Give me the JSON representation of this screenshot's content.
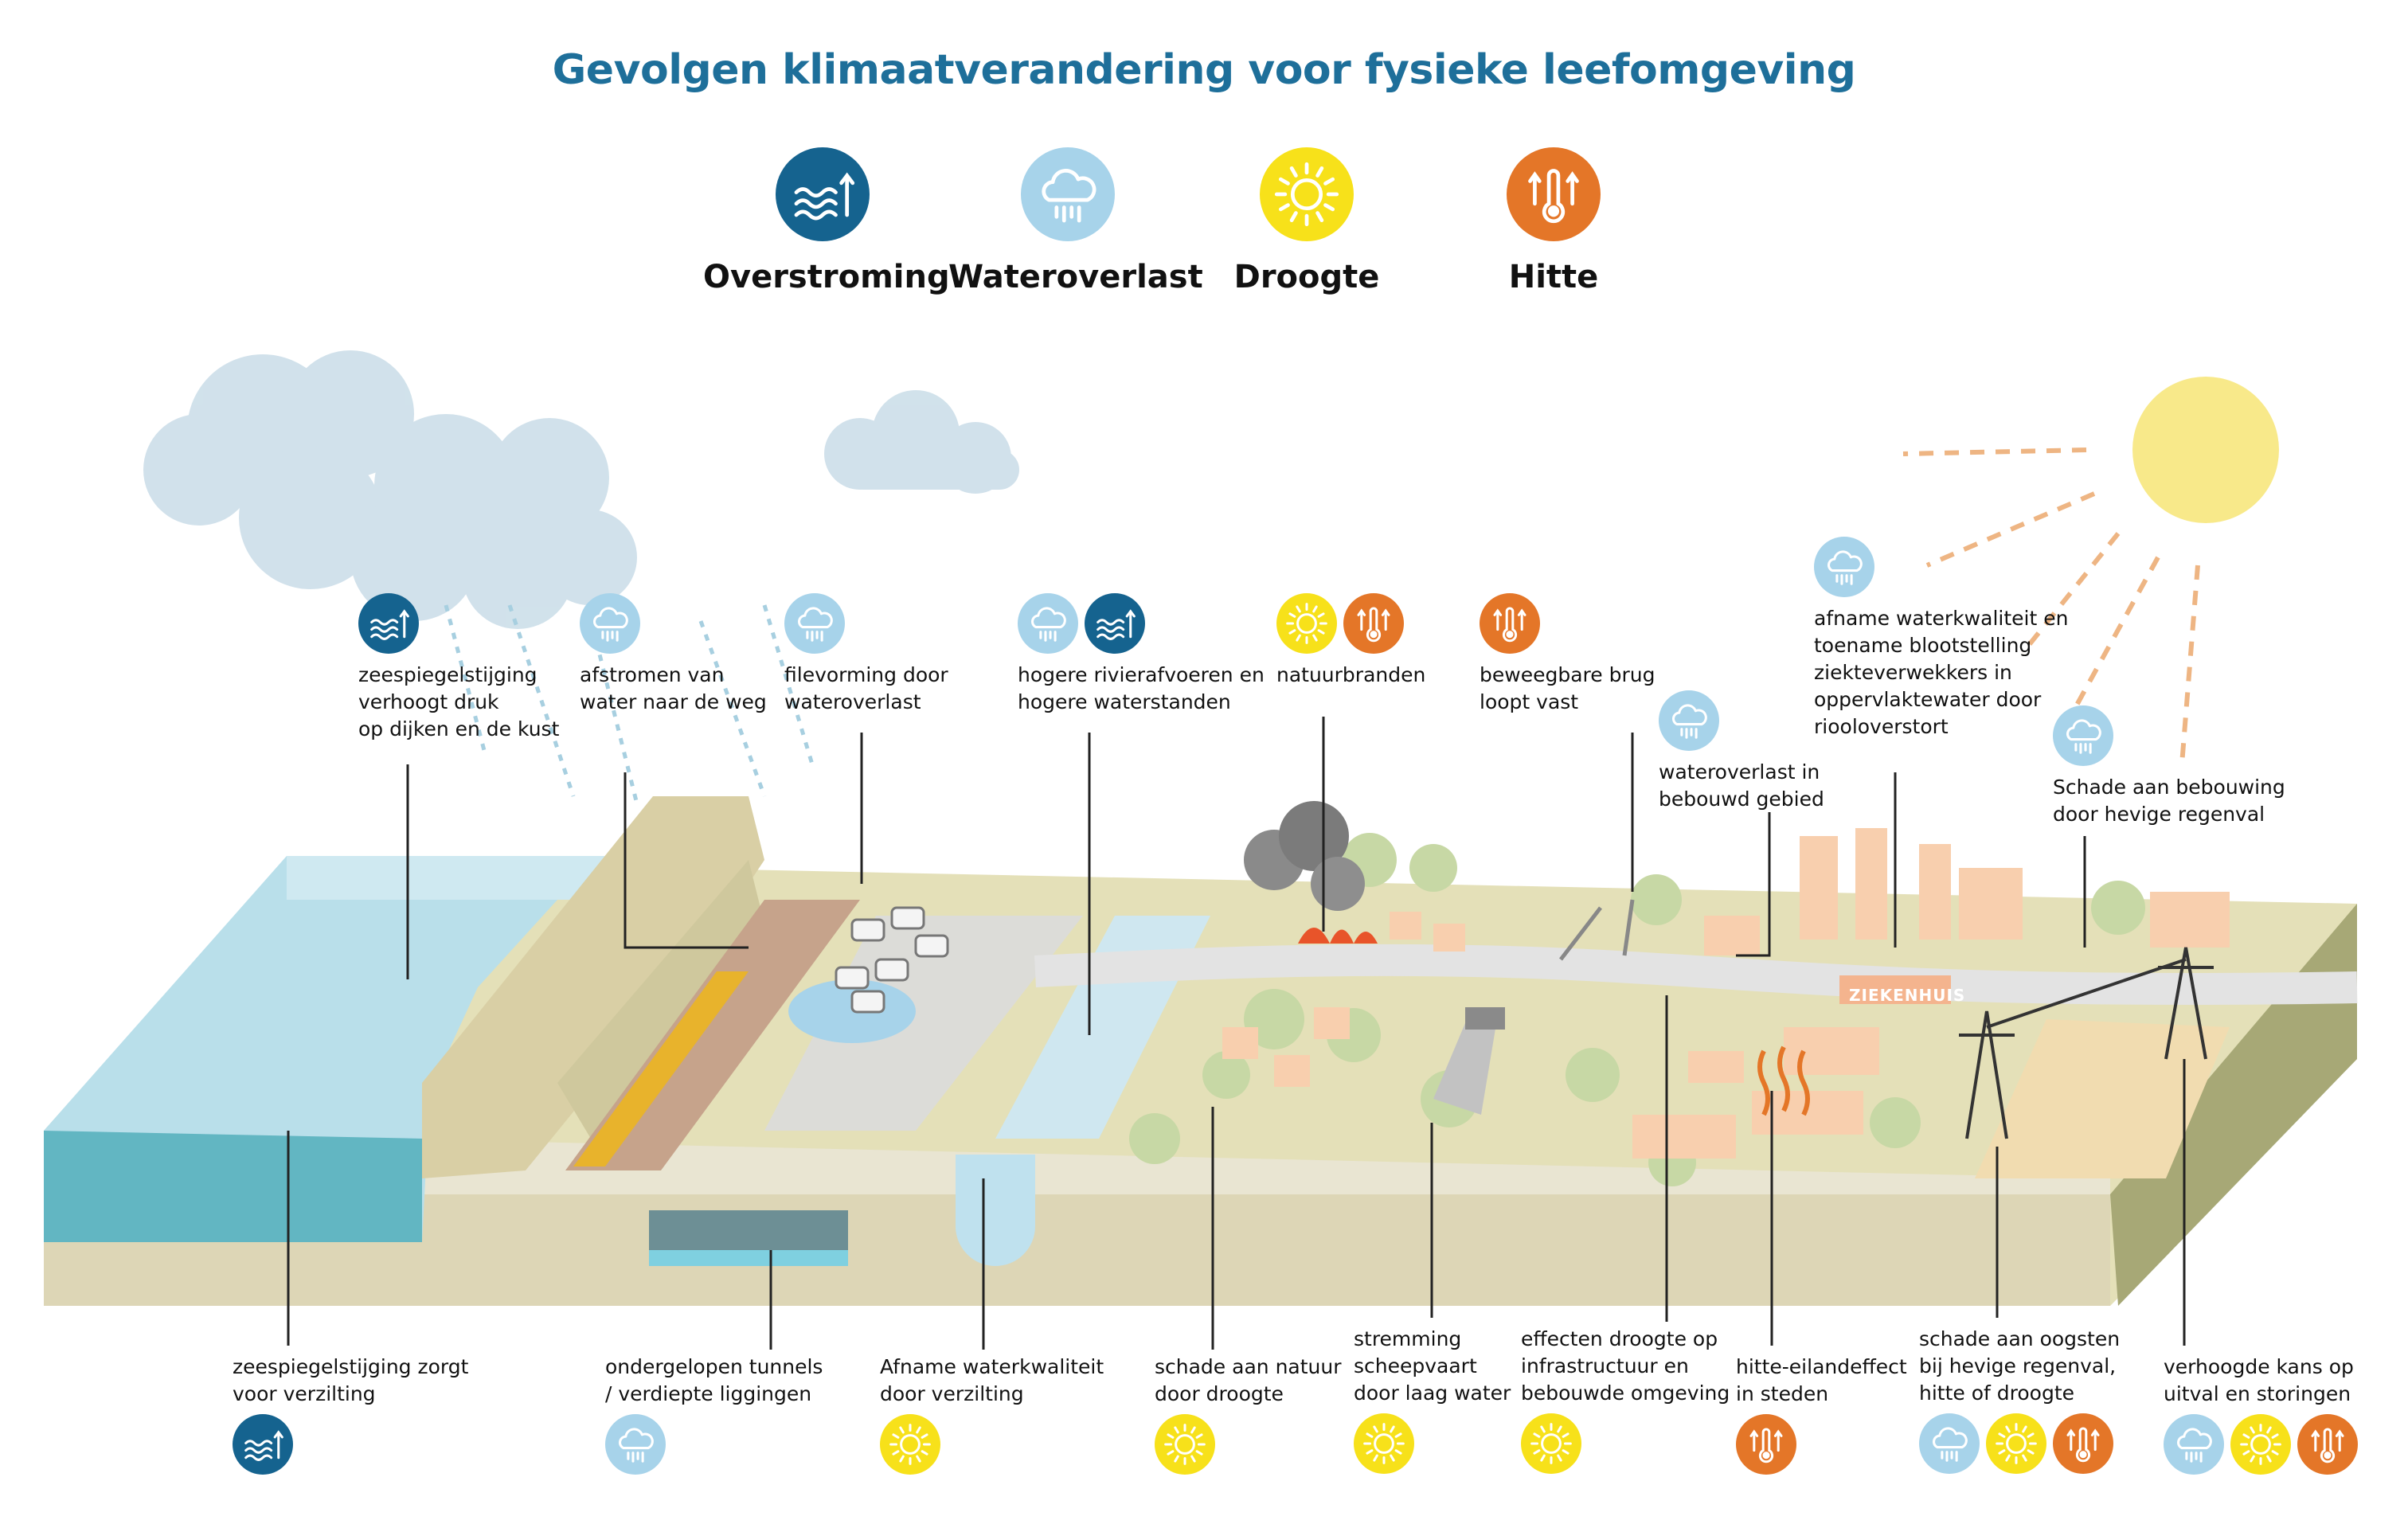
{
  "title": "Gevolgen klimaatverandering voor fysieke leefomgeving",
  "colors": {
    "overstroming": "#15638f",
    "wateroverlast": "#a7d3ea",
    "droogte": "#f7e11a",
    "hitte": "#e47628",
    "title": "#1e6f9a"
  },
  "legend": [
    {
      "type": "overstroming",
      "label": "Overstroming",
      "icon": "waves-arrow-icon"
    },
    {
      "type": "wateroverlast",
      "label": "Wateroverlast",
      "icon": "rain-cloud-icon"
    },
    {
      "type": "droogte",
      "label": "Droogte",
      "icon": "sun-icon"
    },
    {
      "type": "hitte",
      "label": "Hitte",
      "icon": "thermometer-icon"
    }
  ],
  "annotations": {
    "top": [
      {
        "id": "zeespiegelstijging-druk",
        "icons": [
          "overstroming"
        ],
        "lines": [
          "zeespiegelstijging",
          "verhoogt druk",
          "op dijken en de kust"
        ]
      },
      {
        "id": "afstromen-water",
        "icons": [
          "wateroverlast"
        ],
        "lines": [
          "afstromen van",
          "water naar de weg"
        ]
      },
      {
        "id": "filevorming",
        "icons": [
          "wateroverlast"
        ],
        "lines": [
          "filevorming door",
          "wateroverlast"
        ]
      },
      {
        "id": "rivierafvoeren",
        "icons": [
          "wateroverlast",
          "overstroming"
        ],
        "lines": [
          "hogere rivierafvoeren en",
          "hogere waterstanden"
        ]
      },
      {
        "id": "natuurbranden",
        "icons": [
          "droogte",
          "hitte"
        ],
        "lines": [
          "natuurbranden"
        ]
      },
      {
        "id": "beweegbare-brug",
        "icons": [
          "hitte"
        ],
        "lines": [
          "beweegbare brug",
          "loopt vast"
        ]
      },
      {
        "id": "wateroverlast-bebouwd",
        "icons": [
          "wateroverlast"
        ],
        "lines": [
          "wateroverlast in",
          "bebouwd gebied"
        ]
      },
      {
        "id": "waterkwaliteit-ziekteverwekkers",
        "icons": [
          "wateroverlast"
        ],
        "lines": [
          "afname waterkwaliteit en",
          "toename blootstelling",
          "ziekteverwekkers in",
          "oppervlaktewater door",
          "riooloverstort"
        ]
      },
      {
        "id": "schade-bebouwing",
        "icons": [
          "wateroverlast"
        ],
        "lines": [
          "Schade aan bebouwing",
          "door hevige regenval"
        ]
      }
    ],
    "bottom": [
      {
        "id": "verzilting",
        "icons": [
          "overstroming"
        ],
        "lines": [
          "zeespiegelstijging zorgt",
          "voor verzilting"
        ]
      },
      {
        "id": "tunnels",
        "icons": [
          "wateroverlast"
        ],
        "lines": [
          "ondergelopen tunnels",
          "/ verdiepte liggingen"
        ]
      },
      {
        "id": "waterkwaliteit-verzilting",
        "icons": [
          "droogte"
        ],
        "lines": [
          "Afname waterkwaliteit",
          "door verzilting"
        ]
      },
      {
        "id": "schade-natuur",
        "icons": [
          "droogte"
        ],
        "lines": [
          "schade aan natuur",
          "door droogte"
        ]
      },
      {
        "id": "scheepvaart",
        "icons": [
          "droogte"
        ],
        "lines": [
          "stremming",
          "scheepvaart",
          "door laag water"
        ]
      },
      {
        "id": "infrastructuur",
        "icons": [
          "droogte"
        ],
        "lines": [
          "effecten droogte op",
          "infrastructuur en",
          "bebouwde omgeving"
        ]
      },
      {
        "id": "hitte-eiland",
        "icons": [
          "hitte"
        ],
        "lines": [
          "hitte-eilandeffect",
          "in steden"
        ]
      },
      {
        "id": "oogsten",
        "icons": [
          "wateroverlast",
          "droogte",
          "hitte"
        ],
        "lines": [
          "schade aan oogsten",
          "bij hevige regenval,",
          "hitte of droogte"
        ]
      },
      {
        "id": "uitval",
        "icons": [
          "wateroverlast",
          "droogte",
          "hitte"
        ],
        "lines": [
          "verhoogde kans op",
          "uitval en storingen"
        ]
      }
    ]
  },
  "scene_labels": {
    "hospital": "ZIEKENHUIS"
  }
}
